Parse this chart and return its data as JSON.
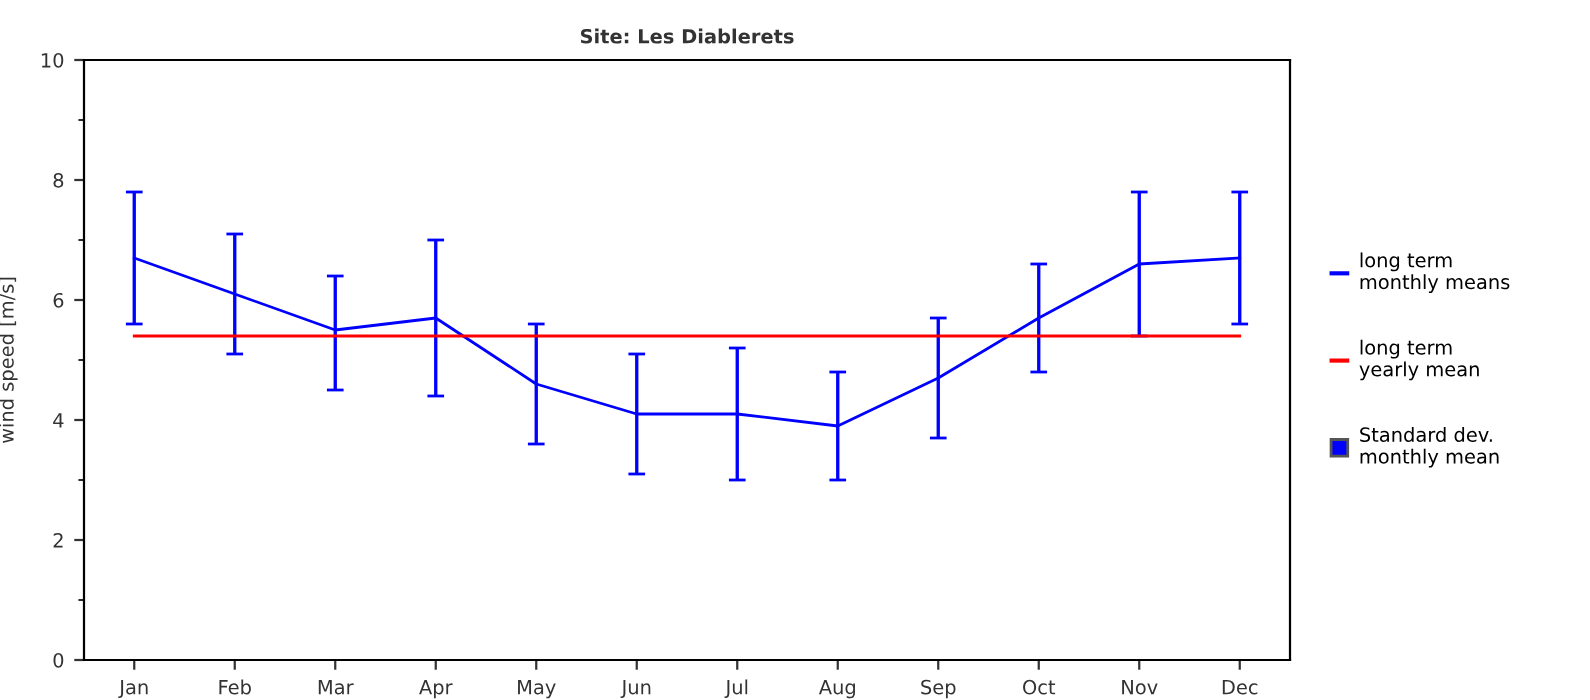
{
  "chart_data": {
    "type": "line",
    "title": "Site: Les Diablerets",
    "ylabel": "wind speed [m/s]",
    "categories": [
      "Jan",
      "Feb",
      "Mar",
      "Apr",
      "May",
      "Jun",
      "Jul",
      "Aug",
      "Sep",
      "Oct",
      "Nov",
      "Dec"
    ],
    "series": [
      {
        "name": "long term\nmonthly means",
        "color": "#0000ff",
        "values": [
          6.7,
          6.1,
          5.5,
          5.7,
          4.6,
          4.1,
          4.1,
          3.9,
          4.7,
          5.7,
          6.6,
          6.7
        ],
        "errors": [
          [
            5.6,
            7.8
          ],
          [
            5.1,
            7.1
          ],
          [
            4.5,
            6.4
          ],
          [
            4.4,
            7.0
          ],
          [
            3.6,
            5.6
          ],
          [
            3.1,
            5.1
          ],
          [
            3.0,
            5.2
          ],
          [
            3.0,
            4.8
          ],
          [
            3.7,
            5.7
          ],
          [
            4.8,
            6.6
          ],
          [
            5.4,
            7.8
          ],
          [
            5.6,
            7.8
          ]
        ]
      },
      {
        "name": "long term\nyearly mean",
        "color": "#ff0000",
        "values": [
          5.4,
          5.4,
          5.4,
          5.4,
          5.4,
          5.4,
          5.4,
          5.4,
          5.4,
          5.4,
          5.4,
          5.4
        ]
      }
    ],
    "annotations": [
      "Standard dev.\nmonthly mean"
    ],
    "ylim": [
      0,
      10
    ],
    "yticks": [
      0,
      2,
      4,
      6,
      8,
      10
    ],
    "grid": false,
    "legend": "right",
    "marker": "none",
    "line_style": "solid"
  }
}
